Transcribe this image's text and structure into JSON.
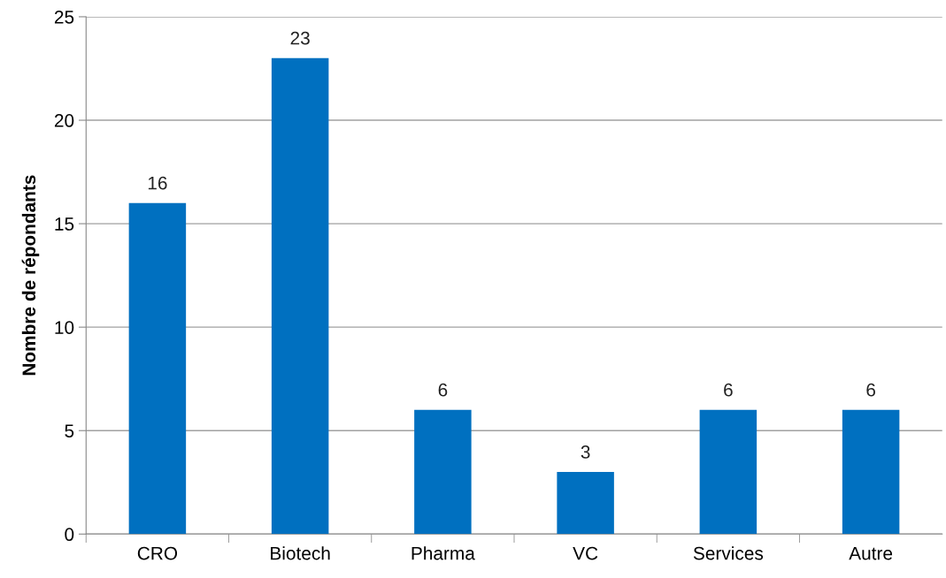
{
  "chart_data": {
    "type": "bar",
    "ylabel": "Nombre de répondants",
    "categories": [
      "CRO",
      "Biotech",
      "Pharma",
      "VC",
      "Services",
      "Autre"
    ],
    "values": [
      16,
      23,
      6,
      3,
      6,
      6
    ],
    "color": "#0070c0",
    "ylim": [
      0,
      25
    ],
    "yticks": [
      0,
      5,
      10,
      15,
      20,
      25
    ],
    "grid": "y",
    "data_labels": true
  }
}
